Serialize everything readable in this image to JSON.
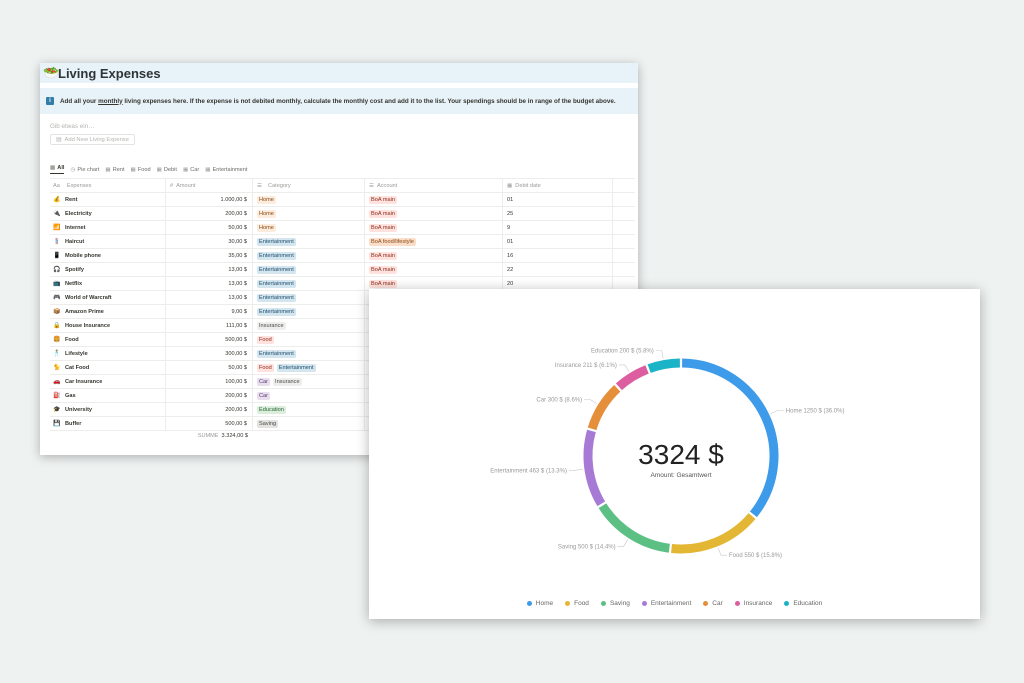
{
  "notion": {
    "title": "Living Expenses",
    "title_emoji": "🥗",
    "callout_before": "Add all your ",
    "callout_underlined": "monthly",
    "callout_after": " living expenses here. If the expense is not debited monthly, calculate the monthly cost and add it to the list. Your spendings should be in range of the budget above.",
    "search_placeholder": "Gib etwas ein…",
    "add_button_label": "Add New Living Expense",
    "tabs": [
      {
        "label": "All",
        "icon": "table-icon",
        "active": true
      },
      {
        "label": "Pie chart",
        "icon": "clock-icon"
      },
      {
        "label": "Rent",
        "icon": "table-icon"
      },
      {
        "label": "Food",
        "icon": "table-icon"
      },
      {
        "label": "Debit",
        "icon": "table-icon"
      },
      {
        "label": "Car",
        "icon": "table-icon"
      },
      {
        "label": "Entertainment",
        "icon": "table-icon"
      }
    ],
    "columns": [
      "Expenses",
      "Amount",
      "Category",
      "Account",
      "Debit date"
    ],
    "rows": [
      {
        "icon": "💰",
        "name": "Rent",
        "amount": "1.000,00 $",
        "categories": [
          "Home"
        ],
        "account": "BoA main",
        "debit": "01"
      },
      {
        "icon": "🔌",
        "name": "Electricity",
        "amount": "200,00 $",
        "categories": [
          "Home"
        ],
        "account": "BoA main",
        "debit": "25"
      },
      {
        "icon": "📶",
        "name": "Internet",
        "amount": "50,00 $",
        "categories": [
          "Home"
        ],
        "account": "BoA main",
        "debit": "9"
      },
      {
        "icon": "💈",
        "name": "Haircut",
        "amount": "30,00 $",
        "categories": [
          "Entertainment"
        ],
        "account": "BoA food/lifestyle",
        "debit": "01"
      },
      {
        "icon": "📱",
        "name": "Mobile phone",
        "amount": "35,00 $",
        "categories": [
          "Entertainment"
        ],
        "account": "BoA main",
        "debit": "16"
      },
      {
        "icon": "🎧",
        "name": "Spotify",
        "amount": "13,00 $",
        "categories": [
          "Entertainment"
        ],
        "account": "BoA main",
        "debit": "22"
      },
      {
        "icon": "📺",
        "name": "Netflix",
        "amount": "13,00 $",
        "categories": [
          "Entertainment"
        ],
        "account": "BoA main",
        "debit": "20"
      },
      {
        "icon": "🎮",
        "name": "World of Warcraft",
        "amount": "13,00 $",
        "categories": [
          "Entertainment"
        ],
        "account": "",
        "debit": ""
      },
      {
        "icon": "📦",
        "name": "Amazon Prime",
        "amount": "9,00 $",
        "categories": [
          "Entertainment"
        ],
        "account": "",
        "debit": ""
      },
      {
        "icon": "🔒",
        "name": "House Insurance",
        "amount": "111,00 $",
        "categories": [
          "Insurance"
        ],
        "account": "",
        "debit": ""
      },
      {
        "icon": "🍔",
        "name": "Food",
        "amount": "500,00 $",
        "categories": [
          "Food"
        ],
        "account": "",
        "debit": ""
      },
      {
        "icon": "🕺",
        "name": "Lifestyle",
        "amount": "300,00 $",
        "categories": [
          "Entertainment"
        ],
        "account": "",
        "debit": ""
      },
      {
        "icon": "🐈",
        "name": "Cat Food",
        "amount": "50,00 $",
        "categories": [
          "Food",
          "Entertainment"
        ],
        "account": "",
        "debit": ""
      },
      {
        "icon": "🚗",
        "name": "Car Insurance",
        "amount": "100,00 $",
        "categories": [
          "Car",
          "Insurance"
        ],
        "account": "",
        "debit": ""
      },
      {
        "icon": "⛽",
        "name": "Gas",
        "amount": "200,00 $",
        "categories": [
          "Car"
        ],
        "account": "",
        "debit": ""
      },
      {
        "icon": "🎓",
        "name": "University",
        "amount": "200,00 $",
        "categories": [
          "Education"
        ],
        "account": "",
        "debit": ""
      },
      {
        "icon": "💾",
        "name": "Buffer",
        "amount": "500,00 $",
        "categories": [
          "Saving"
        ],
        "account": "",
        "debit": ""
      }
    ],
    "sum_label": "SUMME",
    "sum_value": "3.324,00 $",
    "tag_colors": {
      "Home": {
        "bg": "#fbecdd",
        "fg": "#8a4a14"
      },
      "Entertainment": {
        "bg": "#d3e5ef",
        "fg": "#1f4d6b"
      },
      "Insurance": {
        "bg": "#eeeeed",
        "fg": "#4a4a47"
      },
      "Food": {
        "bg": "#ffe2dd",
        "fg": "#8a2b1c"
      },
      "Car": {
        "bg": "#e8deee",
        "fg": "#5a3b72"
      },
      "Education": {
        "bg": "#dbeddb",
        "fg": "#2b6336"
      },
      "Saving": {
        "bg": "#e3e2e0",
        "fg": "#4a4a47"
      },
      "BoA main": {
        "bg": "#ffe2dd",
        "fg": "#8a2b1c"
      },
      "BoA food/lifestyle": {
        "bg": "#fadec9",
        "fg": "#8a4a14"
      }
    }
  },
  "chart": {
    "center_value": "3324 $",
    "center_label": "Amount: Gesamtwert"
  },
  "chart_data": {
    "type": "pie",
    "title": "",
    "total": 3324,
    "slices": [
      {
        "name": "Home",
        "value": 1250,
        "label": "Home 1250 $ (36.0%)",
        "color": "#3d9be9"
      },
      {
        "name": "Food",
        "value": 550,
        "label": "Food 550 $ (15.8%)",
        "color": "#e3b633"
      },
      {
        "name": "Saving",
        "value": 500,
        "label": "Saving 500 $ (14.4%)",
        "color": "#5cbf84"
      },
      {
        "name": "Entertainment",
        "value": 463,
        "label": "Entertainment 463 $ (13.3%)",
        "color": "#a77ad6"
      },
      {
        "name": "Car",
        "value": 300,
        "label": "Car 300 $ (8.6%)",
        "color": "#e58f3b"
      },
      {
        "name": "Insurance",
        "value": 211,
        "label": "Insurance 211 $ (6.1%)",
        "color": "#dd5ea0"
      },
      {
        "name": "Education",
        "value": 200,
        "label": "Education 200 $ (5.8%)",
        "color": "#1ab3c8"
      }
    ],
    "legend_position": "bottom"
  }
}
